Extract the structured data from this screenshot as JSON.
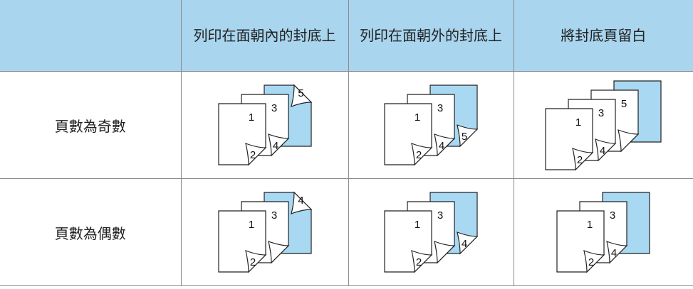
{
  "table": {
    "columns": [
      "列印在面朝內的封底上",
      "列印在面朝外的封底上",
      "將封底頁留白"
    ],
    "rows": [
      {
        "label": "頁數為奇數",
        "cells": [
          {
            "pages": [
              1,
              2,
              3,
              4,
              5
            ]
          },
          {
            "pages": [
              1,
              2,
              3,
              4,
              5
            ]
          },
          {
            "pages": [
              1,
              2,
              3,
              4,
              5
            ]
          }
        ]
      },
      {
        "label": "頁數為偶數",
        "cells": [
          {
            "pages": [
              1,
              2,
              3,
              4
            ]
          },
          {
            "pages": [
              1,
              2,
              3,
              4
            ]
          },
          {
            "pages": [
              1,
              2,
              3,
              4
            ]
          }
        ]
      }
    ]
  }
}
